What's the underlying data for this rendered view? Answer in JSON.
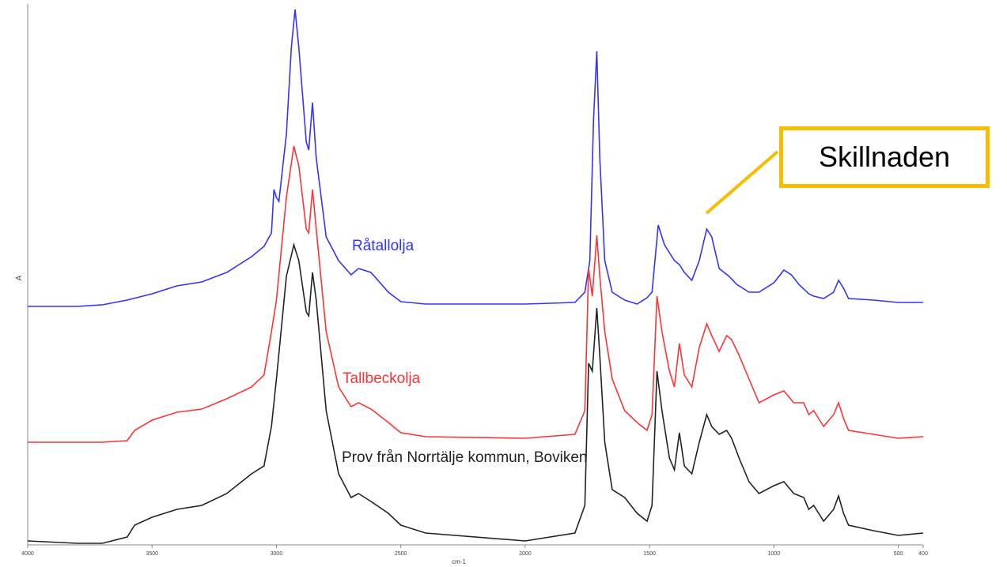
{
  "chart_data": {
    "type": "line",
    "x_label": "cm-1",
    "y_label": "A",
    "xlim": [
      4000,
      400
    ],
    "xticks": [
      4000,
      3500,
      3000,
      2500,
      2000,
      1500,
      1000,
      500,
      400
    ],
    "ylim": [
      0,
      690
    ],
    "annotation": "Skillnaden",
    "series": [
      {
        "name": "Råtallolja",
        "color": "#3333ff",
        "x": [
          4000,
          3800,
          3700,
          3600,
          3500,
          3400,
          3300,
          3200,
          3100,
          3050,
          3020,
          3010,
          3000,
          2990,
          2960,
          2940,
          2925,
          2910,
          2880,
          2870,
          2855,
          2840,
          2800,
          2750,
          2700,
          2670,
          2620,
          2550,
          2500,
          2400,
          2000,
          1800,
          1760,
          1740,
          1725,
          1712,
          1700,
          1680,
          1650,
          1600,
          1550,
          1510,
          1490,
          1465,
          1440,
          1420,
          1400,
          1380,
          1360,
          1330,
          1300,
          1270,
          1250,
          1220,
          1180,
          1150,
          1100,
          1060,
          1000,
          960,
          930,
          900,
          860,
          840,
          800,
          760,
          740,
          720,
          700,
          600,
          500,
          400
        ],
        "values": [
          302,
          302,
          304,
          310,
          318,
          328,
          333,
          345,
          365,
          378,
          395,
          450,
          440,
          435,
          520,
          630,
          678,
          630,
          510,
          500,
          560,
          490,
          390,
          360,
          342,
          350,
          345,
          320,
          308,
          305,
          305,
          307,
          320,
          360,
          540,
          625,
          490,
          360,
          320,
          310,
          305,
          313,
          320,
          405,
          380,
          370,
          360,
          355,
          345,
          335,
          360,
          400,
          390,
          350,
          340,
          330,
          320,
          320,
          332,
          348,
          342,
          330,
          318,
          315,
          312,
          320,
          335,
          325,
          312,
          310,
          307,
          307
        ]
      },
      {
        "name": "Tallbeckolja",
        "color": "#ff3333",
        "x": [
          4000,
          3700,
          3600,
          3570,
          3500,
          3400,
          3300,
          3200,
          3100,
          3050,
          3020,
          3000,
          2960,
          2930,
          2910,
          2880,
          2870,
          2855,
          2840,
          2800,
          2750,
          2700,
          2670,
          2620,
          2550,
          2500,
          2400,
          2000,
          1800,
          1760,
          1745,
          1730,
          1712,
          1700,
          1680,
          1650,
          1600,
          1550,
          1510,
          1490,
          1470,
          1450,
          1420,
          1400,
          1380,
          1360,
          1330,
          1300,
          1270,
          1250,
          1220,
          1190,
          1170,
          1140,
          1100,
          1060,
          1000,
          960,
          920,
          880,
          860,
          840,
          800,
          760,
          740,
          720,
          700,
          600,
          500,
          400
        ],
        "values": [
          130,
          130,
          132,
          145,
          158,
          168,
          172,
          185,
          200,
          215,
          270,
          310,
          440,
          505,
          480,
          400,
          395,
          450,
          400,
          270,
          200,
          175,
          180,
          172,
          155,
          142,
          137,
          135,
          140,
          170,
          350,
          315,
          392,
          340,
          270,
          210,
          170,
          155,
          145,
          165,
          315,
          270,
          220,
          200,
          255,
          215,
          200,
          250,
          280,
          265,
          245,
          265,
          260,
          240,
          210,
          180,
          190,
          195,
          180,
          180,
          165,
          170,
          150,
          165,
          180,
          160,
          145,
          140,
          135,
          137
        ]
      },
      {
        "name": "Prov från Norrtälje kommun, Boviken",
        "color": "#222222",
        "x": [
          4000,
          3800,
          3700,
          3600,
          3570,
          3500,
          3400,
          3300,
          3200,
          3100,
          3050,
          3020,
          3000,
          2960,
          2930,
          2910,
          2880,
          2870,
          2855,
          2840,
          2800,
          2750,
          2700,
          2670,
          2620,
          2550,
          2500,
          2400,
          2000,
          1800,
          1760,
          1745,
          1730,
          1712,
          1700,
          1680,
          1650,
          1600,
          1550,
          1510,
          1490,
          1470,
          1450,
          1420,
          1400,
          1380,
          1360,
          1330,
          1300,
          1270,
          1250,
          1220,
          1190,
          1170,
          1140,
          1100,
          1060,
          1000,
          960,
          920,
          880,
          860,
          840,
          800,
          760,
          740,
          720,
          700,
          600,
          500,
          400
        ],
        "values": [
          5,
          2,
          2,
          10,
          25,
          35,
          45,
          50,
          65,
          90,
          100,
          150,
          210,
          340,
          380,
          360,
          295,
          290,
          345,
          310,
          170,
          90,
          60,
          65,
          55,
          40,
          25,
          15,
          5,
          15,
          50,
          230,
          220,
          300,
          240,
          130,
          70,
          60,
          40,
          30,
          50,
          220,
          170,
          110,
          95,
          142,
          100,
          90,
          130,
          165,
          150,
          140,
          145,
          135,
          110,
          80,
          65,
          75,
          80,
          65,
          60,
          45,
          50,
          30,
          45,
          62,
          40,
          25,
          18,
          12,
          15
        ]
      }
    ]
  }
}
